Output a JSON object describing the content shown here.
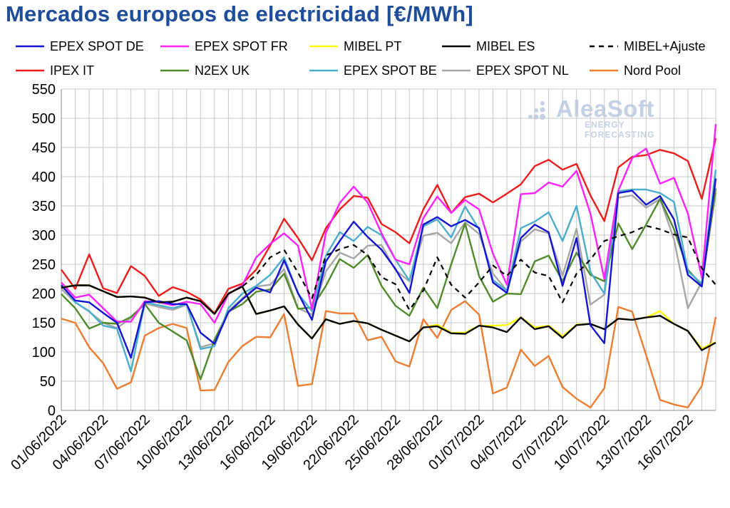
{
  "title": "Mercados europeos de electricidad [€/MWh]",
  "logo": {
    "brand": "AleaSoft",
    "tagline": "ENERGY FORECASTING"
  },
  "colors": {
    "de": "#1414d2",
    "fr": "#ff22ff",
    "pt": "#ffff00",
    "es": "#000000",
    "ajuste": "#000000",
    "it": "#ee1c1c",
    "uk": "#4f8a2b",
    "be": "#4badcc",
    "nl": "#a6a6a6",
    "nordpool": "#ed7d31",
    "grid": "#c8c8c8",
    "logo": "#c3d0e6"
  },
  "chart_data": {
    "type": "line",
    "title": "Mercados europeos de electricidad [€/MWh]",
    "xlabel": "",
    "ylabel": "",
    "ylim": [
      0,
      550
    ],
    "yticks": [
      0,
      50,
      100,
      150,
      200,
      250,
      300,
      350,
      400,
      450,
      500,
      550
    ],
    "x_start": "01/06/2022",
    "x_end": "19/07/2022",
    "xtick_labels": [
      "01/06/2022",
      "04/06/2022",
      "07/06/2022",
      "10/06/2022",
      "13/06/2022",
      "16/06/2022",
      "19/06/2022",
      "22/06/2022",
      "25/06/2022",
      "28/06/2022",
      "01/07/2022",
      "04/07/2022",
      "07/07/2022",
      "10/07/2022",
      "13/07/2022",
      "16/07/2022"
    ],
    "grid": true,
    "legend_placement": "top",
    "series": [
      {
        "key": "de",
        "name": "EPEX SPOT DE",
        "dash": false,
        "values": [
          214,
          188,
          185,
          167,
          150,
          90,
          185,
          187,
          182,
          182,
          133,
          114,
          168,
          190,
          210,
          202,
          257,
          201,
          155,
          255,
          290,
          323,
          297,
          275,
          242,
          201,
          318,
          331,
          315,
          326,
          312,
          219,
          201,
          295,
          318,
          305,
          213,
          295,
          146,
          115,
          372,
          376,
          352,
          367,
          327,
          232,
          212,
          397
        ]
      },
      {
        "key": "fr",
        "name": "EPEX SPOT FR",
        "dash": false,
        "values": [
          219,
          193,
          198,
          175,
          152,
          152,
          187,
          185,
          180,
          186,
          182,
          150,
          199,
          214,
          262,
          285,
          303,
          282,
          173,
          304,
          355,
          383,
          356,
          303,
          258,
          250,
          329,
          366,
          338,
          360,
          344,
          268,
          215,
          370,
          372,
          390,
          383,
          410,
          337,
          225,
          376,
          432,
          448,
          388,
          398,
          337,
          227,
          490
        ]
      },
      {
        "key": "pt",
        "name": "MIBEL PT",
        "dash": false,
        "values": [
          211,
          214,
          214,
          204,
          194,
          195,
          193,
          185,
          186,
          193,
          187,
          165,
          200,
          212,
          165,
          171,
          178,
          147,
          123,
          156,
          148,
          153,
          149,
          138,
          128,
          118,
          142,
          147,
          133,
          133,
          145,
          145,
          146,
          159,
          142,
          145,
          127,
          147,
          148,
          139,
          157,
          155,
          159,
          170,
          148,
          136,
          106,
          117
        ]
      },
      {
        "key": "es",
        "name": "MIBEL ES",
        "dash": false,
        "values": [
          210,
          214,
          214,
          204,
          194,
          195,
          193,
          185,
          186,
          193,
          187,
          165,
          200,
          212,
          165,
          171,
          178,
          147,
          123,
          156,
          148,
          153,
          149,
          138,
          128,
          118,
          142,
          144,
          132,
          131,
          145,
          142,
          134,
          159,
          139,
          144,
          124,
          146,
          148,
          139,
          157,
          155,
          159,
          162,
          148,
          136,
          103,
          116
        ]
      },
      {
        "key": "ajuste",
        "name": "MIBEL+Ajuste",
        "dash": true,
        "values": [
          210,
          214,
          214,
          204,
          194,
          195,
          193,
          185,
          186,
          193,
          187,
          165,
          200,
          212,
          232,
          262,
          275,
          236,
          192,
          265,
          276,
          283,
          266,
          228,
          216,
          172,
          205,
          262,
          215,
          193,
          219,
          248,
          230,
          258,
          236,
          230,
          185,
          234,
          258,
          290,
          298,
          305,
          316,
          310,
          301,
          296,
          243,
          215
        ]
      },
      {
        "key": "it",
        "name": "IPEX IT",
        "dash": false,
        "values": [
          241,
          208,
          267,
          209,
          201,
          247,
          230,
          196,
          211,
          203,
          190,
          166,
          208,
          217,
          241,
          282,
          328,
          295,
          257,
          312,
          344,
          367,
          364,
          319,
          305,
          286,
          344,
          386,
          338,
          365,
          371,
          356,
          371,
          387,
          418,
          429,
          412,
          422,
          368,
          324,
          416,
          434,
          437,
          446,
          440,
          427,
          362,
          466
        ]
      },
      {
        "key": "uk",
        "name": "N2EX UK",
        "dash": false,
        "values": [
          199,
          175,
          140,
          150,
          148,
          160,
          182,
          150,
          135,
          120,
          53,
          121,
          169,
          182,
          203,
          207,
          234,
          174,
          176,
          213,
          259,
          244,
          266,
          213,
          179,
          162,
          210,
          175,
          250,
          320,
          230,
          186,
          200,
          199,
          255,
          265,
          221,
          270,
          232,
          221,
          320,
          276,
          318,
          362,
          310,
          241,
          214,
          380
        ]
      },
      {
        "key": "be",
        "name": "EPEX SPOT BE",
        "dash": false,
        "values": [
          215,
          185,
          170,
          145,
          140,
          67,
          185,
          180,
          175,
          182,
          105,
          110,
          175,
          200,
          213,
          232,
          262,
          200,
          170,
          265,
          305,
          290,
          314,
          300,
          258,
          222,
          315,
          327,
          296,
          349,
          310,
          223,
          205,
          312,
          323,
          339,
          290,
          350,
          237,
          200,
          375,
          378,
          378,
          372,
          357,
          238,
          217,
          412
        ]
      },
      {
        "key": "nl",
        "name": "EPEX SPOT NL",
        "dash": false,
        "values": [
          208,
          185,
          169,
          150,
          141,
          158,
          183,
          177,
          172,
          181,
          108,
          115,
          170,
          192,
          212,
          215,
          242,
          175,
          164,
          238,
          270,
          260,
          282,
          283,
          240,
          221,
          299,
          304,
          286,
          322,
          302,
          234,
          205,
          289,
          310,
          303,
          230,
          311,
          181,
          198,
          364,
          368,
          347,
          362,
          293,
          175,
          220,
          372
        ]
      },
      {
        "key": "nordpool",
        "name": "Nord Pool",
        "dash": false,
        "values": [
          157,
          150,
          108,
          81,
          37,
          48,
          128,
          141,
          148,
          141,
          34,
          35,
          83,
          110,
          126,
          125,
          165,
          42,
          45,
          170,
          166,
          166,
          120,
          126,
          84,
          75,
          156,
          124,
          172,
          187,
          164,
          29,
          39,
          104,
          76,
          93,
          40,
          20,
          5,
          38,
          177,
          169,
          95,
          18,
          10,
          5,
          42,
          160
        ]
      }
    ]
  }
}
